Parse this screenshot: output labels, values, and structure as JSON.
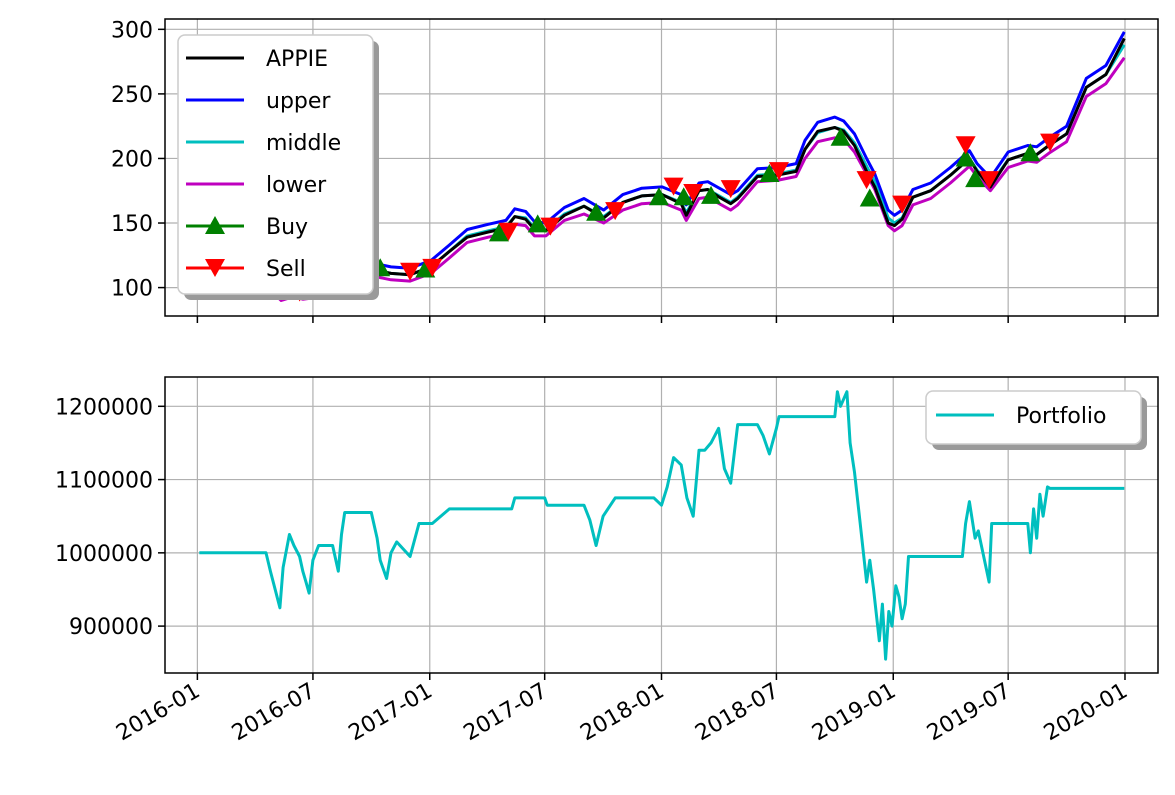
{
  "chart_data": [
    {
      "type": "line",
      "xlabel": "",
      "ylabel": "",
      "xlim": [
        "2015-11-11",
        "2020-02-22"
      ],
      "ylim": [
        78,
        308
      ],
      "grid": true,
      "legend_position": "upper-left",
      "x_ticks": [
        "2016-01",
        "2016-07",
        "2017-01",
        "2017-07",
        "2018-01",
        "2018-07",
        "2019-01",
        "2019-07",
        "2020-01"
      ],
      "y_ticks": [
        100,
        150,
        200,
        250,
        300
      ],
      "legend": [
        "APPIE",
        "upper",
        "middle",
        "lower",
        "Buy",
        "Sell"
      ],
      "colors": {
        "APPIE": "#000000",
        "upper": "#0000ff",
        "middle": "#00bfbf",
        "lower": "#bf00bf",
        "Buy": "#008000",
        "Sell": "#ff0000"
      },
      "x": [
        "2016-01-04",
        "2016-02-01",
        "2016-03-01",
        "2016-04-01",
        "2016-04-25",
        "2016-05-12",
        "2016-06-01",
        "2016-06-15",
        "2016-07-01",
        "2016-08-01",
        "2016-09-01",
        "2016-10-03",
        "2016-11-01",
        "2016-12-01",
        "2017-01-03",
        "2017-02-01",
        "2017-03-01",
        "2017-04-03",
        "2017-05-01",
        "2017-05-15",
        "2017-06-01",
        "2017-06-15",
        "2017-07-03",
        "2017-08-01",
        "2017-09-01",
        "2017-10-02",
        "2017-11-01",
        "2017-12-01",
        "2018-01-02",
        "2018-02-01",
        "2018-02-09",
        "2018-03-01",
        "2018-03-15",
        "2018-04-02",
        "2018-04-20",
        "2018-05-01",
        "2018-06-01",
        "2018-07-02",
        "2018-08-01",
        "2018-08-15",
        "2018-09-04",
        "2018-10-01",
        "2018-10-15",
        "2018-11-01",
        "2018-11-20",
        "2018-12-03",
        "2018-12-24",
        "2019-01-03",
        "2019-01-15",
        "2019-02-01",
        "2019-03-01",
        "2019-04-01",
        "2019-05-01",
        "2019-05-13",
        "2019-06-03",
        "2019-07-01",
        "2019-08-01",
        "2019-08-15",
        "2019-09-03",
        "2019-10-01",
        "2019-11-01",
        "2019-12-02",
        "2019-12-31"
      ],
      "series": [
        {
          "name": "APPIE",
          "values": [
            105,
            97,
            101,
            109,
            105,
            93,
            97,
            95,
            96,
            106,
            112,
            114,
            111,
            110,
            116,
            128,
            139,
            143,
            146,
            155,
            153,
            145,
            144,
            156,
            163,
            154,
            166,
            171,
            172,
            165,
            156,
            175,
            176,
            170,
            165,
            169,
            186,
            187,
            190,
            207,
            221,
            224,
            221,
            210,
            190,
            178,
            150,
            148,
            153,
            170,
            175,
            187,
            200,
            190,
            178,
            199,
            204,
            203,
            210,
            219,
            255,
            265,
            293
          ]
        },
        {
          "name": "upper",
          "values": [
            110,
            102,
            106,
            114,
            110,
            99,
            102,
            100,
            101,
            111,
            117,
            119,
            116,
            115,
            121,
            133,
            145,
            149,
            152,
            161,
            159,
            151,
            150,
            162,
            169,
            160,
            172,
            177,
            178,
            172,
            164,
            181,
            182,
            177,
            172,
            175,
            192,
            193,
            196,
            214,
            228,
            232,
            229,
            219,
            200,
            188,
            160,
            156,
            160,
            176,
            181,
            193,
            206,
            196,
            185,
            205,
            210,
            209,
            216,
            225,
            262,
            272,
            298
          ]
        },
        {
          "name": "middle",
          "values": [
            105,
            97,
            101,
            109,
            104,
            95,
            98,
            96,
            97,
            106,
            112,
            114,
            111,
            110,
            116,
            128,
            140,
            144,
            147,
            155,
            154,
            146,
            145,
            157,
            163,
            155,
            166,
            171,
            172,
            166,
            158,
            175,
            176,
            171,
            166,
            170,
            187,
            188,
            191,
            207,
            220,
            224,
            222,
            212,
            194,
            182,
            154,
            150,
            154,
            170,
            175,
            187,
            200,
            191,
            180,
            199,
            204,
            203,
            210,
            219,
            255,
            265,
            288
          ]
        },
        {
          "name": "lower",
          "values": [
            100,
            92,
            96,
            104,
            98,
            90,
            93,
            91,
            92,
            101,
            107,
            109,
            106,
            105,
            111,
            123,
            135,
            139,
            142,
            149,
            148,
            140,
            140,
            152,
            157,
            150,
            160,
            165,
            166,
            160,
            152,
            169,
            170,
            165,
            160,
            164,
            182,
            183,
            186,
            200,
            213,
            216,
            215,
            205,
            188,
            176,
            148,
            144,
            148,
            164,
            169,
            181,
            194,
            186,
            175,
            193,
            198,
            197,
            204,
            213,
            248,
            258,
            278
          ]
        }
      ],
      "buy_signals": [
        {
          "x": "2016-05-10",
          "y": 98
        },
        {
          "x": "2016-10-15",
          "y": 115
        },
        {
          "x": "2016-12-25",
          "y": 114
        },
        {
          "x": "2017-04-20",
          "y": 142
        },
        {
          "x": "2017-06-20",
          "y": 149
        },
        {
          "x": "2017-09-20",
          "y": 158
        },
        {
          "x": "2017-12-28",
          "y": 170
        },
        {
          "x": "2018-02-05",
          "y": 170
        },
        {
          "x": "2018-03-20",
          "y": 171
        },
        {
          "x": "2018-06-20",
          "y": 188
        },
        {
          "x": "2018-10-10",
          "y": 216
        },
        {
          "x": "2018-11-25",
          "y": 169
        },
        {
          "x": "2019-04-25",
          "y": 200
        },
        {
          "x": "2019-05-10",
          "y": 184
        },
        {
          "x": "2019-08-05",
          "y": 204
        }
      ],
      "sell_signals": [
        {
          "x": "2016-06-10",
          "y": 97
        },
        {
          "x": "2016-12-01",
          "y": 113
        },
        {
          "x": "2017-01-05",
          "y": 116
        },
        {
          "x": "2017-05-05",
          "y": 144
        },
        {
          "x": "2017-07-10",
          "y": 148
        },
        {
          "x": "2017-10-20",
          "y": 160
        },
        {
          "x": "2018-01-20",
          "y": 179
        },
        {
          "x": "2018-02-20",
          "y": 174
        },
        {
          "x": "2018-04-20",
          "y": 177
        },
        {
          "x": "2018-07-05",
          "y": 191
        },
        {
          "x": "2018-11-20",
          "y": 184
        },
        {
          "x": "2019-01-15",
          "y": 165
        },
        {
          "x": "2019-04-25",
          "y": 211
        },
        {
          "x": "2019-06-01",
          "y": 184
        },
        {
          "x": "2019-09-05",
          "y": 213
        }
      ]
    },
    {
      "type": "line",
      "xlabel": "",
      "ylabel": "",
      "xlim": [
        "2015-11-11",
        "2020-02-22"
      ],
      "ylim": [
        836000,
        1240000
      ],
      "grid": true,
      "legend_position": "upper-right",
      "x_ticks": [
        "2016-01",
        "2016-07",
        "2017-01",
        "2017-07",
        "2018-01",
        "2018-07",
        "2019-01",
        "2019-07",
        "2020-01"
      ],
      "y_ticks": [
        900000,
        1000000,
        1100000,
        1200000
      ],
      "legend": [
        "Portfolio"
      ],
      "colors": {
        "Portfolio": "#00bfbf"
      },
      "series": [
        {
          "name": "Portfolio",
          "x": [
            "2016-01-04",
            "2016-04-18",
            "2016-04-25",
            "2016-05-01",
            "2016-05-10",
            "2016-05-15",
            "2016-05-25",
            "2016-06-01",
            "2016-06-10",
            "2016-06-15",
            "2016-06-20",
            "2016-06-25",
            "2016-07-01",
            "2016-07-10",
            "2016-08-01",
            "2016-08-10",
            "2016-08-15",
            "2016-08-20",
            "2016-08-25",
            "2016-09-01",
            "2016-10-01",
            "2016-10-10",
            "2016-10-15",
            "2016-10-25",
            "2016-11-01",
            "2016-11-10",
            "2016-12-01",
            "2016-12-15",
            "2017-01-01",
            "2017-01-05",
            "2017-02-01",
            "2017-05-01",
            "2017-05-10",
            "2017-05-15",
            "2017-07-01",
            "2017-07-05",
            "2017-08-01",
            "2017-09-01",
            "2017-09-10",
            "2017-09-20",
            "2017-10-01",
            "2017-10-20",
            "2017-12-20",
            "2018-01-01",
            "2018-01-10",
            "2018-01-20",
            "2018-02-01",
            "2018-02-10",
            "2018-02-20",
            "2018-03-01",
            "2018-03-10",
            "2018-03-20",
            "2018-04-01",
            "2018-04-10",
            "2018-04-20",
            "2018-05-01",
            "2018-05-10",
            "2018-06-01",
            "2018-06-10",
            "2018-06-20",
            "2018-07-01",
            "2018-07-05",
            "2018-08-01",
            "2018-09-01",
            "2018-10-01",
            "2018-10-05",
            "2018-10-10",
            "2018-10-20",
            "2018-10-25",
            "2018-11-01",
            "2018-11-10",
            "2018-11-20",
            "2018-11-25",
            "2018-12-01",
            "2018-12-10",
            "2018-12-15",
            "2018-12-20",
            "2018-12-25",
            "2018-12-30",
            "2019-01-05",
            "2019-01-10",
            "2019-01-15",
            "2019-01-20",
            "2019-01-25",
            "2019-03-01",
            "2019-04-01",
            "2019-04-20",
            "2019-04-25",
            "2019-05-01",
            "2019-05-10",
            "2019-05-15",
            "2019-06-01",
            "2019-06-05",
            "2019-07-01",
            "2019-07-10",
            "2019-08-01",
            "2019-08-05",
            "2019-08-10",
            "2019-08-15",
            "2019-08-20",
            "2019-08-25",
            "2019-09-01",
            "2019-09-05",
            "2019-10-01",
            "2019-11-01",
            "2019-12-31"
          ],
          "values": [
            1000000,
            1000000,
            975000,
            955000,
            925000,
            980000,
            1025000,
            1010000,
            995000,
            975000,
            960000,
            945000,
            990000,
            1010000,
            1010000,
            975000,
            1025000,
            1055000,
            1055000,
            1055000,
            1055000,
            1020000,
            990000,
            965000,
            1000000,
            1015000,
            995000,
            1040000,
            1040000,
            1040000,
            1060000,
            1060000,
            1060000,
            1075000,
            1075000,
            1065000,
            1065000,
            1065000,
            1045000,
            1010000,
            1050000,
            1075000,
            1075000,
            1065000,
            1090000,
            1130000,
            1120000,
            1075000,
            1050000,
            1140000,
            1140000,
            1150000,
            1170000,
            1115000,
            1095000,
            1175000,
            1175000,
            1175000,
            1160000,
            1135000,
            1170000,
            1186000,
            1186000,
            1186000,
            1186000,
            1220000,
            1200000,
            1220000,
            1150000,
            1110000,
            1040000,
            960000,
            990000,
            950000,
            880000,
            930000,
            855000,
            920000,
            900000,
            955000,
            940000,
            910000,
            930000,
            995000,
            995000,
            995000,
            995000,
            1040000,
            1070000,
            1020000,
            1030000,
            960000,
            1040000,
            1040000,
            1040000,
            1040000,
            1000000,
            1060000,
            1020000,
            1080000,
            1050000,
            1090000,
            1088000,
            1088000,
            1088000,
            1088000
          ]
        }
      ]
    }
  ]
}
